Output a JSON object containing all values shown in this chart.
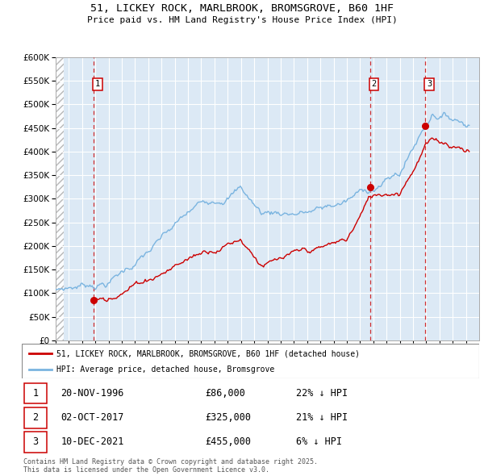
{
  "title": "51, LICKEY ROCK, MARLBROOK, BROMSGROVE, B60 1HF",
  "subtitle": "Price paid vs. HM Land Registry's House Price Index (HPI)",
  "ylim": [
    0,
    600000
  ],
  "yticks": [
    0,
    50000,
    100000,
    150000,
    200000,
    250000,
    300000,
    350000,
    400000,
    450000,
    500000,
    550000,
    600000
  ],
  "xlim_start": 1994.0,
  "xlim_end": 2026.0,
  "bg_color": "#dce9f5",
  "hpi_color": "#7ab4e0",
  "price_color": "#cc0000",
  "grid_color": "#ffffff",
  "legend_label_price": "51, LICKEY ROCK, MARLBROOK, BROMSGROVE, B60 1HF (detached house)",
  "legend_label_hpi": "HPI: Average price, detached house, Bromsgrove",
  "transaction1_date": "20-NOV-1996",
  "transaction1_price": "£86,000",
  "transaction1_hpi": "22% ↓ HPI",
  "transaction1_label": "1",
  "transaction1_x": 1996.88,
  "transaction1_y": 86000,
  "transaction2_date": "02-OCT-2017",
  "transaction2_price": "£325,000",
  "transaction2_hpi": "21% ↓ HPI",
  "transaction2_label": "2",
  "transaction2_x": 2017.75,
  "transaction2_y": 325000,
  "transaction3_date": "10-DEC-2021",
  "transaction3_price": "£455,000",
  "transaction3_hpi": "6% ↓ HPI",
  "transaction3_label": "3",
  "transaction3_x": 2021.94,
  "transaction3_y": 455000,
  "footer": "Contains HM Land Registry data © Crown copyright and database right 2025.\nThis data is licensed under the Open Government Licence v3.0."
}
